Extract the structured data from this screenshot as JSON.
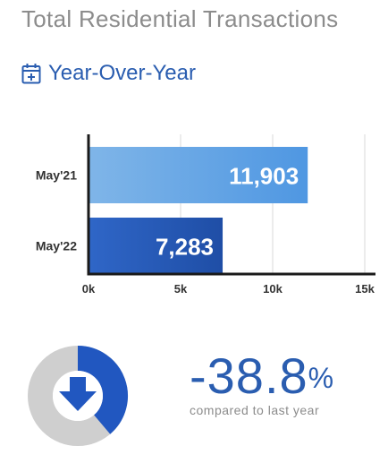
{
  "header": {
    "title": "Total Residential Transactions",
    "subtitle": "Year-Over-Year",
    "subtitle_icon": "calendar-plus-icon"
  },
  "colors": {
    "title": "#8c8c8c",
    "accent": "#2a5db0",
    "bar_light_start": "#7fb5e8",
    "bar_light_end": "#4f97e2",
    "bar_dark_start": "#2f66c7",
    "bar_dark_end": "#1f4ea6",
    "donut_track": "#cfcfcf",
    "donut_fill": "#2157c0"
  },
  "chart_data": {
    "type": "bar",
    "orientation": "horizontal",
    "categories": [
      "May'21",
      "May'22"
    ],
    "values": [
      11903,
      7283
    ],
    "data_labels": [
      "11,903",
      "7,283"
    ],
    "xlim": [
      0,
      15000
    ],
    "xticks": [
      0,
      5000,
      10000,
      15000
    ],
    "xtick_labels": [
      "0k",
      "5k",
      "10k",
      "15k"
    ],
    "grid": true,
    "legend": "none"
  },
  "summary": {
    "change_number": "-38.8",
    "change_percent_sign": "%",
    "caption": "compared to last year",
    "direction_icon": "arrow-down-icon",
    "donut_fraction": 0.388
  }
}
